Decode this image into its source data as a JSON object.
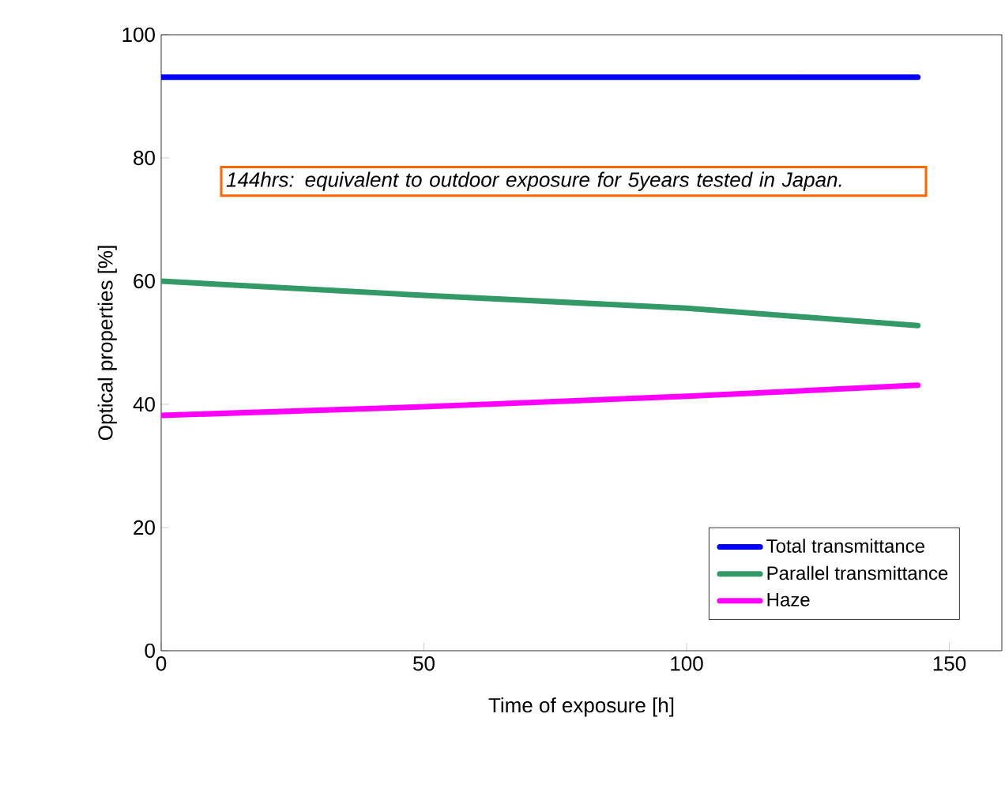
{
  "chart_data": {
    "type": "line",
    "xlabel": "Time of exposure   [h]",
    "ylabel": "Optical properties   [%]",
    "annotations": [
      "144hrs: equivalent to outdoor exposure for 5years tested in Japan."
    ],
    "xlim": [
      0,
      160
    ],
    "xticks": [
      0,
      50,
      100,
      150
    ],
    "ylim": [
      0,
      100
    ],
    "yticks": [
      0,
      20,
      40,
      60,
      80,
      100
    ],
    "grid": false,
    "legend": "bottom right",
    "marker": "none",
    "line_style": "solid",
    "series": [
      {
        "name": "Total transmittance",
        "color": "#0000ff",
        "x": [
          0,
          50,
          100,
          144
        ],
        "values": [
          93.1,
          93.1,
          93.1,
          93.1
        ]
      },
      {
        "name": "Parallel transmittance",
        "color": "#339966",
        "x": [
          0,
          50,
          100,
          144
        ],
        "values": [
          60,
          57.7,
          55.6,
          52.8
        ]
      },
      {
        "name": "Haze",
        "color": "#ff00ff",
        "x": [
          0,
          50,
          100,
          144
        ],
        "values": [
          38.2,
          39.6,
          41.3,
          43.1
        ]
      }
    ]
  }
}
